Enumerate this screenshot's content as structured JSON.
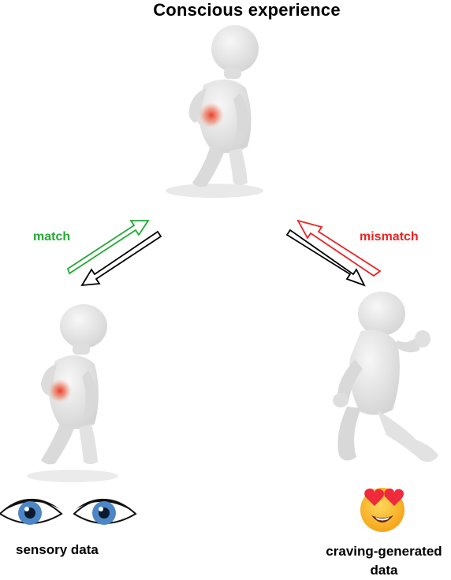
{
  "title": "Conscious experience",
  "labels": {
    "match": "match",
    "mismatch": "mismatch",
    "sensory": "sensory data",
    "craving": "craving-generated data"
  },
  "colors": {
    "match": "#22aa33",
    "mismatch": "#ee2222",
    "neutral": "#000000",
    "figure": "#e9e9e9",
    "figure_shade": "#cfcfcf",
    "iris": "#4d86c6",
    "pain": "#ee3322"
  }
}
